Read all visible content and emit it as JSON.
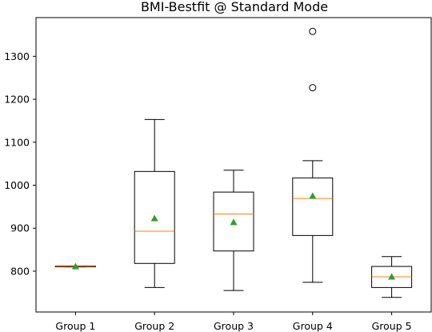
{
  "chart_data": {
    "type": "box",
    "title": "BMI-Bestfit @ Standard Mode",
    "xlabel": "",
    "ylabel": "",
    "categories": [
      "Group 1",
      "Group 2",
      "Group 3",
      "Group 4",
      "Group 5"
    ],
    "ylim": [
      705,
      1390
    ],
    "yticks": [
      800,
      900,
      1000,
      1100,
      1200,
      1300
    ],
    "grid": false,
    "boxes": [
      {
        "whislo": 810,
        "q1": 810,
        "med": 811,
        "q3": 812,
        "whishi": 812,
        "mean": 811,
        "fliers": []
      },
      {
        "whislo": 762,
        "q1": 818,
        "med": 893,
        "q3": 1032,
        "whishi": 1153,
        "mean": 923,
        "fliers": []
      },
      {
        "whislo": 755,
        "q1": 847,
        "med": 933,
        "q3": 984,
        "whishi": 1035,
        "mean": 914,
        "fliers": []
      },
      {
        "whislo": 774,
        "q1": 883,
        "med": 969,
        "q3": 1017,
        "whishi": 1057,
        "mean": 975,
        "fliers": [
          1227,
          1358
        ]
      },
      {
        "whislo": 739,
        "q1": 762,
        "med": 787,
        "q3": 811,
        "whishi": 834,
        "mean": 787,
        "fliers": []
      }
    ],
    "colors": {
      "box": "#000000",
      "median": "#ff7f0e",
      "mean": "#2ca02c"
    }
  }
}
